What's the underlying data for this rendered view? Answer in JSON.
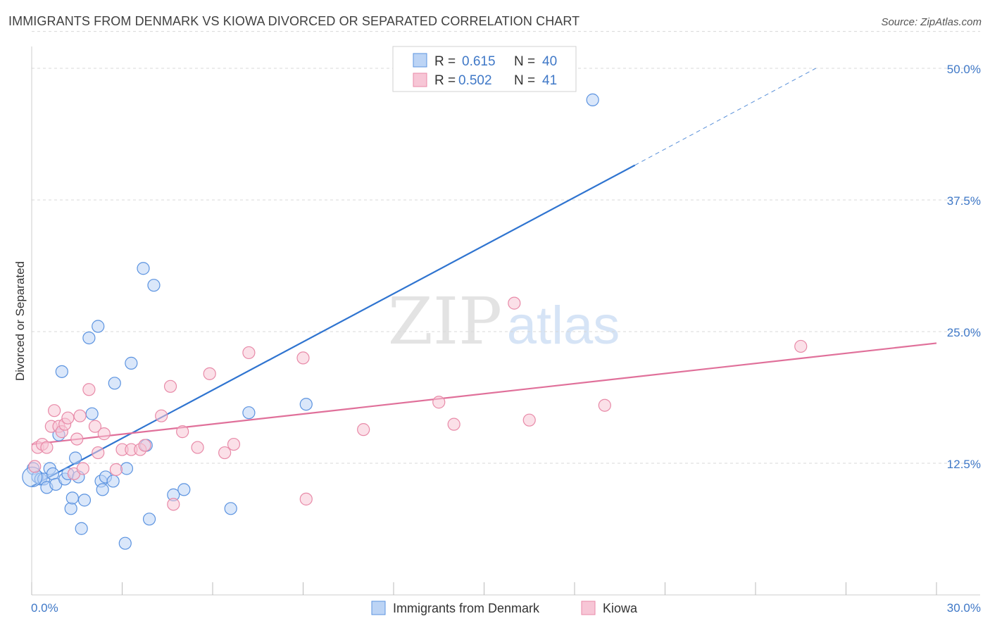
{
  "title": "IMMIGRANTS FROM DENMARK VS KIOWA DIVORCED OR SEPARATED CORRELATION CHART",
  "source": "Source: ZipAtlas.com",
  "watermark": {
    "zip": "ZIP",
    "atlas": "atlas"
  },
  "colors": {
    "blue": "#5b93e0",
    "blue_fill": "#bcd4f5",
    "blue_line": "#2f74d0",
    "pink": "#e88aa8",
    "pink_fill": "#f7c6d6",
    "pink_line": "#e0709a",
    "axis_label": "#3f78c7",
    "grid": "#d8d8d8"
  },
  "legend_top": {
    "rows": [
      {
        "r_label": "R =",
        "r_value": "0.615",
        "n_label": "N =",
        "n_value": "40"
      },
      {
        "r_label": "R =",
        "r_value": "0.502",
        "n_label": "N =",
        "n_value": "41"
      }
    ]
  },
  "legend_bottom": {
    "series1": "Immigrants from Denmark",
    "series2": "Kiowa"
  },
  "chart_data": {
    "type": "scatter",
    "xlabel": "",
    "ylabel": "Divorced or Separated",
    "xlim": [
      0,
      30
    ],
    "ylim": [
      0,
      50
    ],
    "x_tick_labels": [
      "0.0%",
      "30.0%"
    ],
    "y_ticks": [
      12.5,
      25.0,
      37.5,
      50.0
    ],
    "y_tick_labels": [
      "12.5%",
      "25.0%",
      "37.5%",
      "50.0%"
    ],
    "grid": true,
    "series": [
      {
        "name": "Immigrants from Denmark",
        "color": "#5b93e0",
        "points": [
          [
            0.05,
            12.0
          ],
          [
            0.2,
            11.2
          ],
          [
            0.3,
            11.0
          ],
          [
            0.4,
            11.0
          ],
          [
            0.5,
            10.2
          ],
          [
            0.6,
            12.0
          ],
          [
            0.7,
            11.5
          ],
          [
            0.8,
            10.5
          ],
          [
            0.9,
            15.2
          ],
          [
            1.0,
            21.2
          ],
          [
            1.1,
            11.0
          ],
          [
            1.2,
            11.5
          ],
          [
            1.3,
            8.2
          ],
          [
            1.35,
            9.2
          ],
          [
            1.45,
            13.0
          ],
          [
            1.55,
            11.2
          ],
          [
            1.65,
            6.3
          ],
          [
            1.75,
            9.0
          ],
          [
            1.9,
            24.4
          ],
          [
            2.0,
            17.2
          ],
          [
            2.2,
            25.5
          ],
          [
            2.3,
            10.8
          ],
          [
            2.35,
            10.0
          ],
          [
            2.45,
            11.2
          ],
          [
            2.7,
            10.8
          ],
          [
            2.75,
            20.1
          ],
          [
            3.1,
            4.9
          ],
          [
            3.15,
            12.0
          ],
          [
            3.3,
            22.0
          ],
          [
            3.7,
            31.0
          ],
          [
            3.8,
            14.2
          ],
          [
            3.9,
            7.2
          ],
          [
            4.05,
            29.4
          ],
          [
            4.7,
            9.5
          ],
          [
            5.05,
            10.0
          ],
          [
            6.6,
            8.2
          ],
          [
            7.2,
            17.3
          ],
          [
            9.1,
            18.1
          ],
          [
            18.6,
            47.0
          ],
          [
            0.02,
            11.2
          ]
        ],
        "trend": {
          "x1": 0,
          "y1": 10.3,
          "x2": 20.0,
          "y2": 40.8,
          "dash_to_x": 26.0,
          "dash_to_y": 50.0
        }
      },
      {
        "name": "Kiowa",
        "color": "#e88aa8",
        "points": [
          [
            0.1,
            12.2
          ],
          [
            0.2,
            14.0
          ],
          [
            0.35,
            14.3
          ],
          [
            0.5,
            14.0
          ],
          [
            0.65,
            16.0
          ],
          [
            0.75,
            17.5
          ],
          [
            0.9,
            16.0
          ],
          [
            1.0,
            15.5
          ],
          [
            1.1,
            16.2
          ],
          [
            1.2,
            16.8
          ],
          [
            1.4,
            11.5
          ],
          [
            1.5,
            14.8
          ],
          [
            1.6,
            17.0
          ],
          [
            1.7,
            12.0
          ],
          [
            1.9,
            19.5
          ],
          [
            2.1,
            16.0
          ],
          [
            2.2,
            13.5
          ],
          [
            2.4,
            15.3
          ],
          [
            2.8,
            11.9
          ],
          [
            3.0,
            13.8
          ],
          [
            3.3,
            13.8
          ],
          [
            3.6,
            13.8
          ],
          [
            3.75,
            14.2
          ],
          [
            4.3,
            17.0
          ],
          [
            4.6,
            19.8
          ],
          [
            4.7,
            8.6
          ],
          [
            5.0,
            15.5
          ],
          [
            5.5,
            14.0
          ],
          [
            5.9,
            21.0
          ],
          [
            6.4,
            13.5
          ],
          [
            6.7,
            14.3
          ],
          [
            7.2,
            23.0
          ],
          [
            9.0,
            22.5
          ],
          [
            9.1,
            9.1
          ],
          [
            11.0,
            15.7
          ],
          [
            13.5,
            18.3
          ],
          [
            14.0,
            16.2
          ],
          [
            16.0,
            27.7
          ],
          [
            16.5,
            16.6
          ],
          [
            19.0,
            18.0
          ],
          [
            25.5,
            23.6
          ]
        ],
        "trend": {
          "x1": 0,
          "y1": 14.3,
          "x2": 30.0,
          "y2": 23.9
        }
      }
    ]
  }
}
